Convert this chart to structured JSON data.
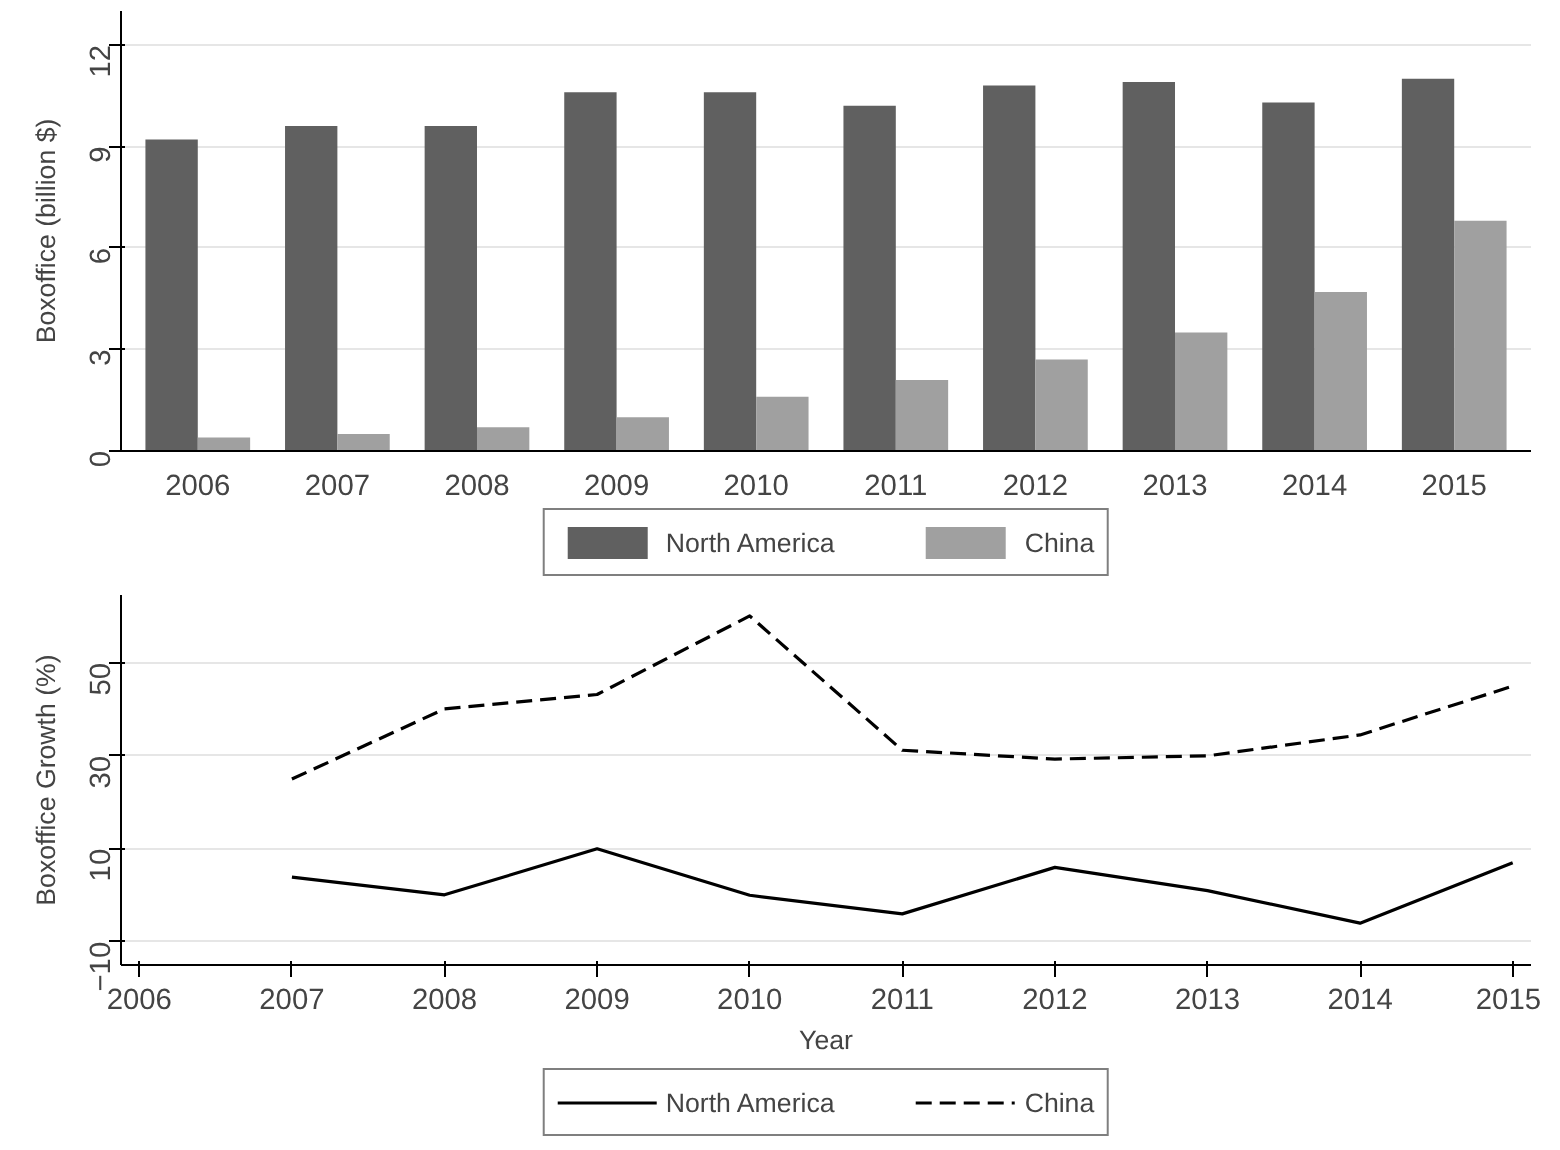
{
  "chart_data": [
    {
      "type": "bar",
      "ylabel": "Boxoffice (billion $)",
      "categories": [
        "2006",
        "2007",
        "2008",
        "2009",
        "2010",
        "2011",
        "2012",
        "2013",
        "2014",
        "2015"
      ],
      "series": [
        {
          "name": "North America",
          "color": "#606060",
          "values": [
            9.2,
            9.6,
            9.6,
            10.6,
            10.6,
            10.2,
            10.8,
            10.9,
            10.3,
            11.0
          ]
        },
        {
          "name": "China",
          "color": "#a0a0a0",
          "values": [
            0.4,
            0.5,
            0.7,
            1.0,
            1.6,
            2.1,
            2.7,
            3.5,
            4.7,
            6.8
          ]
        }
      ],
      "ylim": [
        0,
        13
      ],
      "yticks": [
        0,
        3,
        6,
        9,
        12
      ],
      "grid": "y",
      "legend": "bottom"
    },
    {
      "type": "line",
      "xlabel": "Year",
      "ylabel": "Boxoffice Growth (%)",
      "series": [
        {
          "name": "North America",
          "color": "#000000",
          "line_style": "solid",
          "x": [
            2007,
            2008,
            2009,
            2010,
            2011,
            2012,
            2013,
            2014,
            2015
          ],
          "values": [
            3.9,
            0.1,
            10,
            0,
            -4,
            6,
            1,
            -6,
            7
          ]
        },
        {
          "name": "China",
          "color": "#000000",
          "line_style": "dashed",
          "x": [
            2007,
            2008,
            2009,
            2010,
            2011,
            2012,
            2013,
            2014,
            2015
          ],
          "values": [
            25,
            40.1,
            43.2,
            60.1,
            31.2,
            29.3,
            30,
            34.5,
            45
          ]
        }
      ],
      "xlim": [
        2005.88,
        2015.12
      ],
      "xticks": [
        2006,
        2007,
        2008,
        2009,
        2010,
        2011,
        2012,
        2013,
        2014,
        2015
      ],
      "ylim": [
        -15,
        64.6
      ],
      "yticks": [
        -10,
        10,
        30,
        50
      ],
      "grid": "y",
      "legend": "bottom"
    }
  ]
}
